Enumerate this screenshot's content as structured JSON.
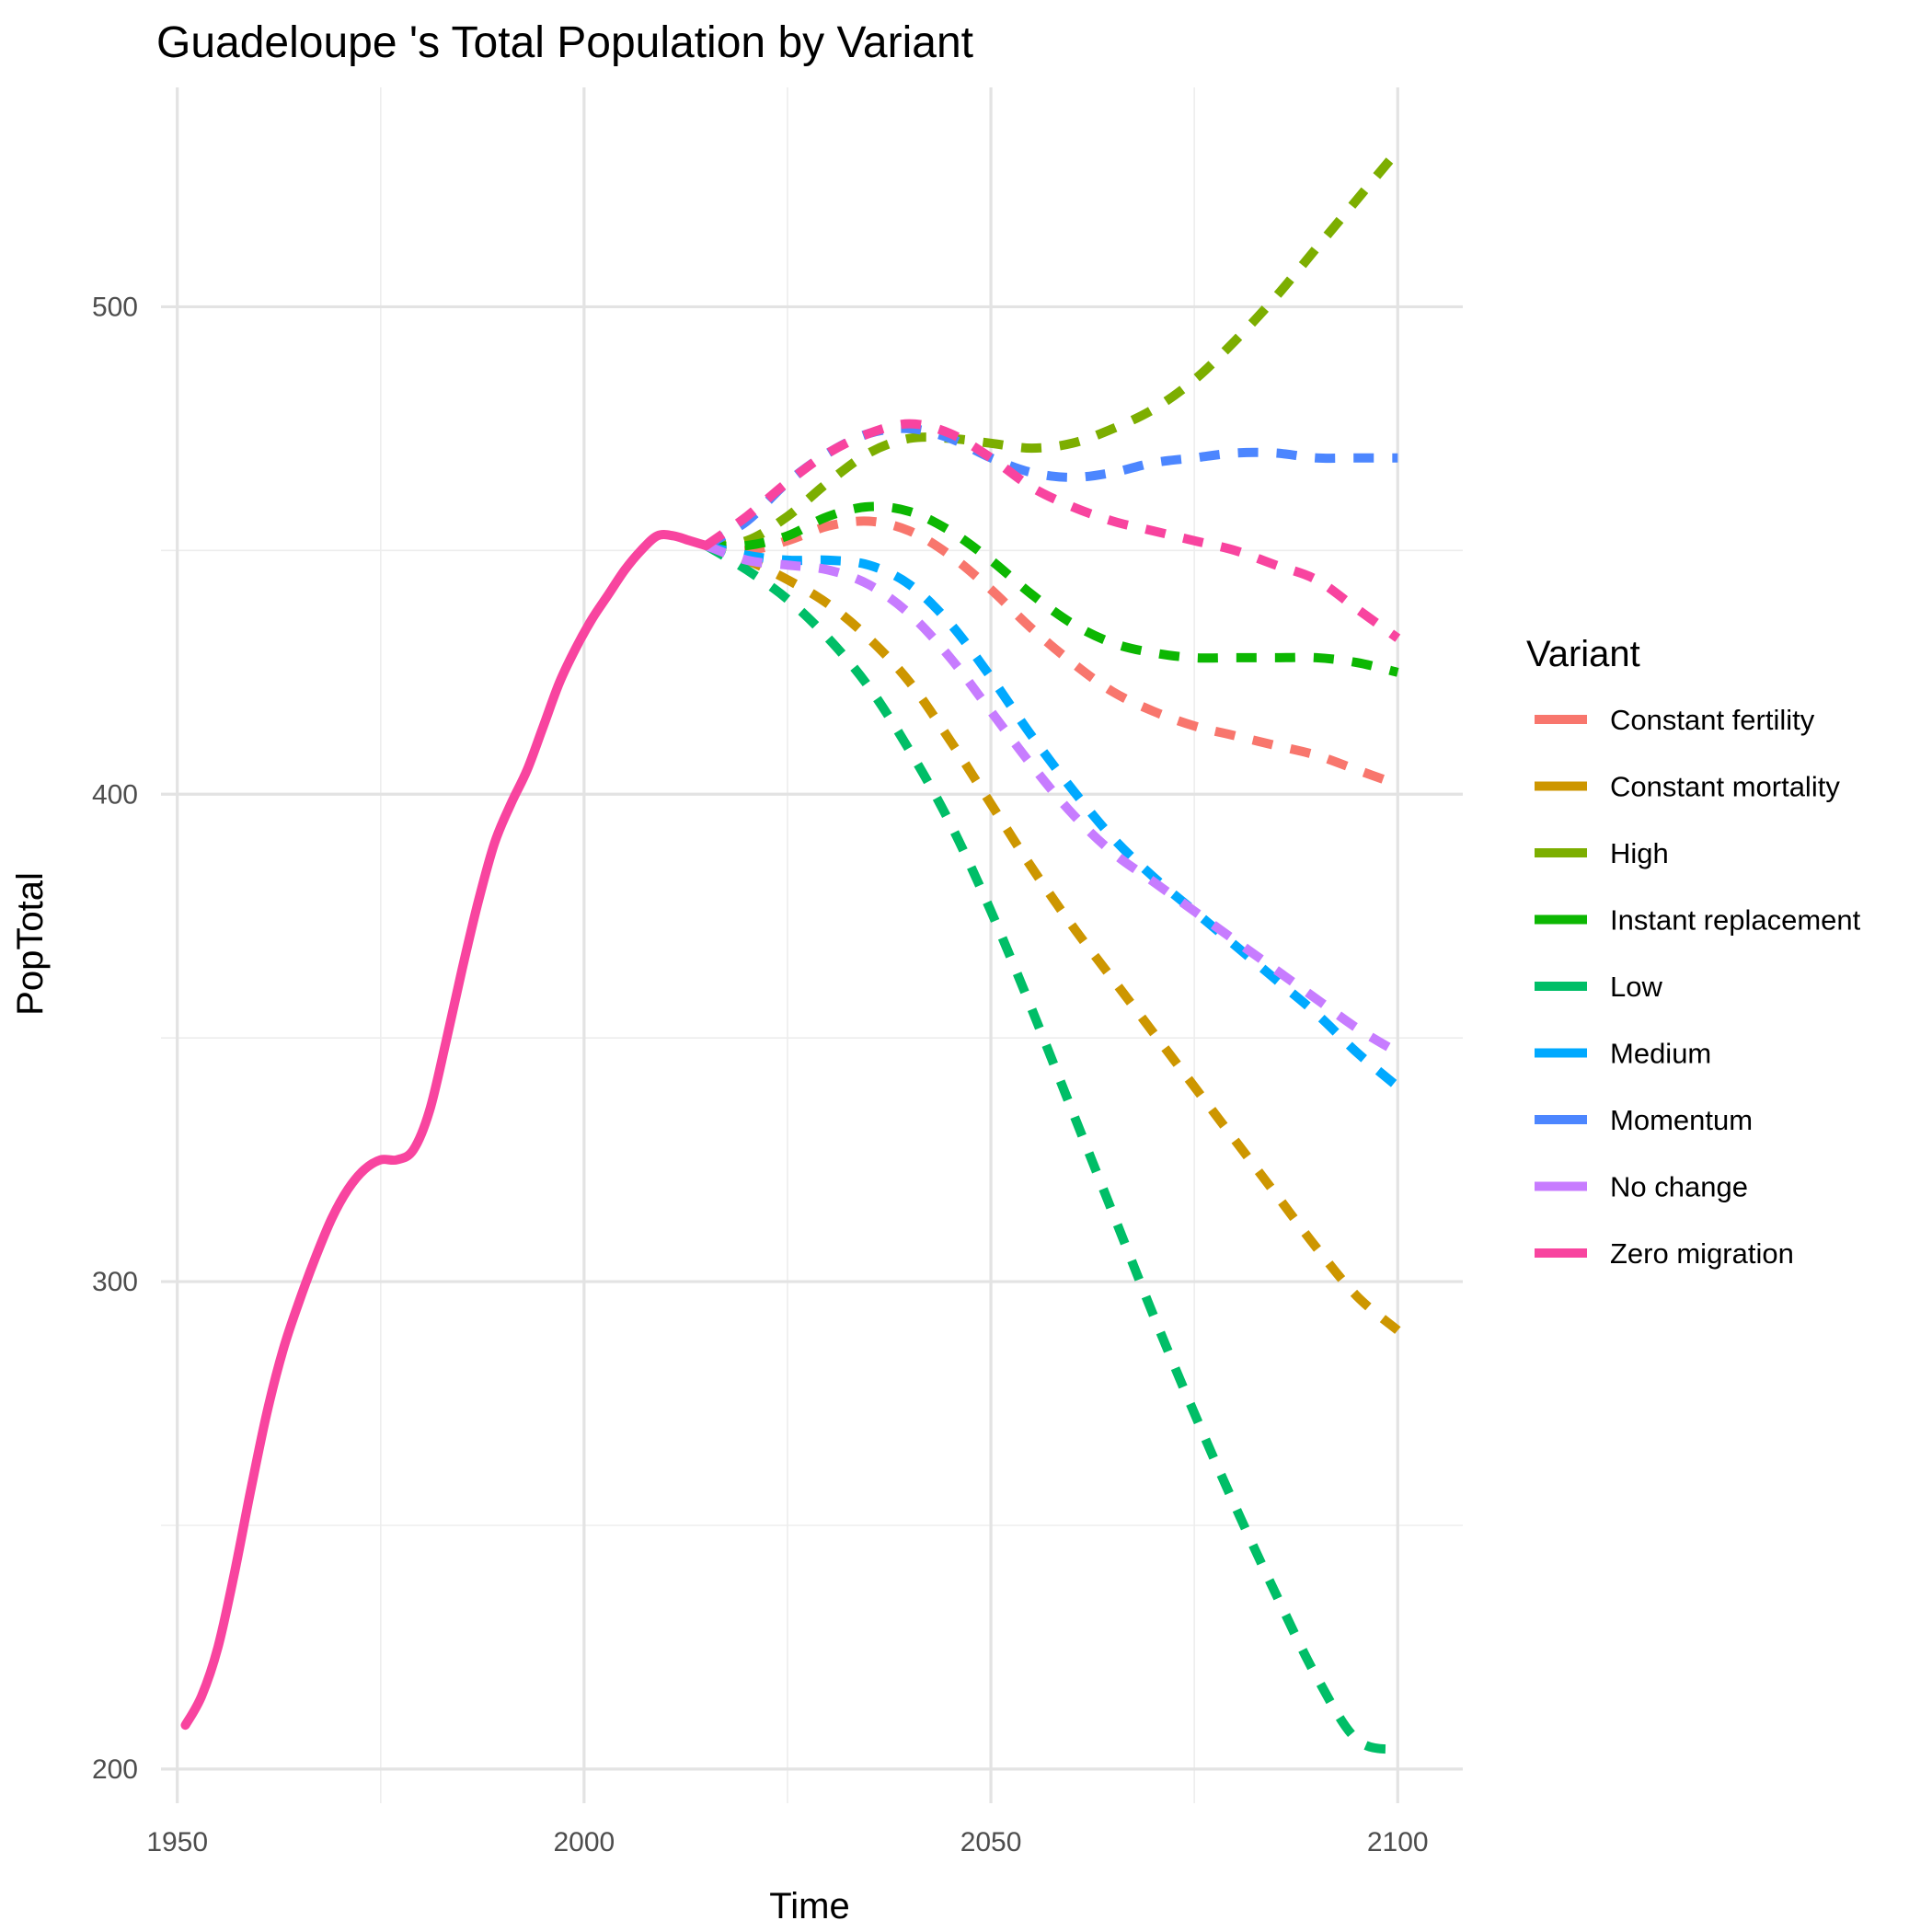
{
  "chart_data": {
    "type": "line",
    "title": "Guadeloupe 's Total Population by Variant",
    "xlabel": "Time",
    "ylabel": "PopTotal",
    "xlim": [
      1948,
      2108
    ],
    "ylim": [
      193,
      545
    ],
    "x_ticks": [
      1950,
      2000,
      2050,
      2100
    ],
    "x_tick_labels": [
      "1950",
      "2000",
      "2050",
      "2100"
    ],
    "x_minor": [
      1975,
      2025,
      2075
    ],
    "y_ticks": [
      200,
      300,
      400,
      500
    ],
    "y_tick_labels": [
      "200",
      "300",
      "400",
      "500"
    ],
    "y_minor": [
      250,
      350,
      450
    ],
    "grid": true,
    "legend": {
      "title": "Variant",
      "position": "right"
    },
    "historical": {
      "color": "#F8449F",
      "x": [
        1951,
        1953,
        1955,
        1957,
        1959,
        1961,
        1963,
        1965,
        1967,
        1969,
        1971,
        1973,
        1975,
        1977,
        1979,
        1981,
        1983,
        1985,
        1987,
        1989,
        1991,
        1993,
        1995,
        1997,
        1999,
        2001,
        2003,
        2005,
        2007,
        2009,
        2011,
        2013,
        2015
      ],
      "y": [
        209,
        215,
        225,
        240,
        257,
        273,
        286,
        296,
        305,
        313,
        319,
        323,
        325,
        325,
        327,
        335,
        349,
        364,
        378,
        390,
        398,
        405,
        414,
        423,
        430,
        436,
        441,
        446,
        450,
        453,
        453,
        452,
        451
      ]
    },
    "series": [
      {
        "name": "Constant fertility",
        "color": "#F8766D",
        "x": [
          2015,
          2020,
          2025,
          2030,
          2035,
          2040,
          2045,
          2050,
          2055,
          2060,
          2065,
          2070,
          2075,
          2080,
          2085,
          2090,
          2095,
          2100
        ],
        "y": [
          451,
          450,
          452,
          455,
          456,
          454,
          449,
          442,
          434,
          427,
          421,
          417,
          414,
          412,
          410,
          408,
          405,
          402
        ]
      },
      {
        "name": "Constant mortality",
        "color": "#CD9600",
        "x": [
          2015,
          2020,
          2025,
          2030,
          2035,
          2040,
          2045,
          2050,
          2055,
          2060,
          2065,
          2070,
          2075,
          2080,
          2085,
          2090,
          2095,
          2100
        ],
        "y": [
          451,
          448,
          444,
          439,
          432,
          423,
          411,
          398,
          385,
          373,
          362,
          351,
          340,
          329,
          318,
          307,
          297,
          290
        ]
      },
      {
        "name": "High",
        "color": "#7CAE00",
        "x": [
          2015,
          2020,
          2025,
          2030,
          2035,
          2040,
          2045,
          2050,
          2055,
          2060,
          2065,
          2070,
          2075,
          2080,
          2085,
          2090,
          2095,
          2100
        ],
        "y": [
          451,
          452,
          457,
          464,
          470,
          473,
          473,
          472,
          471,
          472,
          475,
          479,
          485,
          493,
          502,
          512,
          522,
          532
        ]
      },
      {
        "name": "Instant replacement",
        "color": "#0CB702",
        "x": [
          2015,
          2020,
          2025,
          2030,
          2035,
          2040,
          2045,
          2050,
          2055,
          2060,
          2065,
          2070,
          2075,
          2080,
          2085,
          2090,
          2095,
          2100
        ],
        "y": [
          451,
          451,
          453,
          457,
          459,
          458,
          454,
          448,
          441,
          435,
          431,
          429,
          428,
          428,
          428,
          428,
          427,
          425
        ]
      },
      {
        "name": "Low",
        "color": "#00BE67",
        "x": [
          2015,
          2020,
          2025,
          2030,
          2035,
          2040,
          2045,
          2050,
          2055,
          2060,
          2065,
          2070,
          2075,
          2080,
          2085,
          2090,
          2095,
          2100
        ],
        "y": [
          451,
          446,
          440,
          432,
          422,
          409,
          394,
          376,
          356,
          335,
          314,
          293,
          273,
          254,
          236,
          219,
          206,
          204
        ]
      },
      {
        "name": "Medium",
        "color": "#00A9FF",
        "x": [
          2015,
          2020,
          2025,
          2030,
          2035,
          2040,
          2045,
          2050,
          2055,
          2060,
          2065,
          2070,
          2075,
          2080,
          2085,
          2090,
          2095,
          2100
        ],
        "y": [
          451,
          449,
          448,
          448,
          447,
          443,
          435,
          424,
          412,
          401,
          391,
          383,
          376,
          369,
          362,
          355,
          347,
          340
        ]
      },
      {
        "name": "Momentum",
        "color": "#4C86FF",
        "x": [
          2015,
          2020,
          2025,
          2030,
          2035,
          2040,
          2045,
          2050,
          2055,
          2060,
          2065,
          2070,
          2075,
          2080,
          2085,
          2090,
          2095,
          2100
        ],
        "y": [
          451,
          456,
          464,
          470,
          474,
          475,
          473,
          469,
          466,
          465,
          466,
          468,
          469,
          470,
          470,
          469,
          469,
          469
        ]
      },
      {
        "name": "No change",
        "color": "#C77CFF",
        "x": [
          2015,
          2020,
          2025,
          2030,
          2035,
          2040,
          2045,
          2050,
          2055,
          2060,
          2065,
          2070,
          2075,
          2080,
          2085,
          2090,
          2095,
          2100
        ],
        "y": [
          451,
          448,
          447,
          446,
          443,
          437,
          428,
          417,
          406,
          396,
          388,
          382,
          376,
          370,
          364,
          358,
          352,
          347
        ]
      },
      {
        "name": "Zero migration",
        "color": "#F8449F",
        "x": [
          2015,
          2020,
          2025,
          2030,
          2035,
          2040,
          2045,
          2050,
          2055,
          2060,
          2065,
          2070,
          2075,
          2080,
          2085,
          2090,
          2095,
          2100
        ],
        "y": [
          451,
          457,
          464,
          470,
          474,
          476,
          474,
          469,
          463,
          459,
          456,
          454,
          452,
          450,
          447,
          444,
          438,
          432
        ]
      }
    ]
  }
}
